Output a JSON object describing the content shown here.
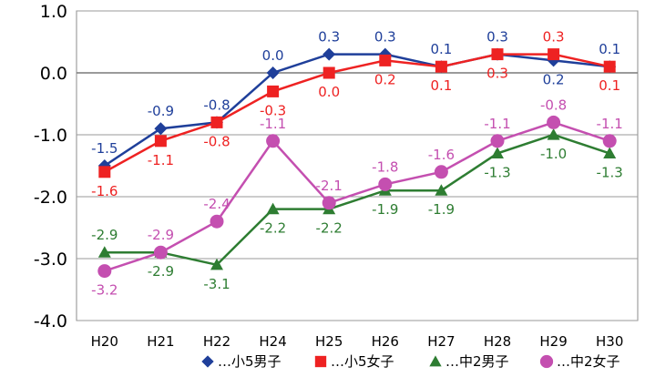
{
  "chart_data": {
    "type": "line",
    "categories": [
      "H20",
      "H21",
      "H22",
      "H24",
      "H25",
      "H26",
      "H27",
      "H28",
      "H29",
      "H30"
    ],
    "ylim": [
      -4.0,
      1.0
    ],
    "yticks": [
      1.0,
      0.0,
      -1.0,
      -2.0,
      -3.0,
      -4.0
    ],
    "ytick_labels": [
      "1.0",
      "0.0",
      "-1.0",
      "-2.0",
      "-3.0",
      "-4.0"
    ],
    "grid": true,
    "legend_position": "bottom",
    "series": [
      {
        "name": "…小5男子",
        "color": "#1f3f9a",
        "marker": "diamond",
        "values": [
          -1.5,
          -0.9,
          -0.8,
          0.0,
          0.3,
          0.3,
          0.1,
          0.3,
          0.2,
          0.1
        ],
        "labels": [
          "-1.5",
          "-0.9",
          "-0.8",
          "0.0",
          "0.3",
          "0.3",
          "0.1",
          "0.3",
          "0.2",
          "0.1"
        ],
        "label_side": [
          "above",
          "above",
          "above",
          "above",
          "above",
          "above",
          "above",
          "above",
          "below",
          "above"
        ]
      },
      {
        "name": "…小5女子",
        "color": "#ee2222",
        "marker": "square",
        "values": [
          -1.6,
          -1.1,
          -0.8,
          -0.3,
          0.0,
          0.2,
          0.1,
          0.3,
          0.3,
          0.1
        ],
        "labels": [
          "-1.6",
          "-1.1",
          "-0.8",
          "-0.3",
          "0.0",
          "0.2",
          "0.1",
          "0.3",
          "0.3",
          "0.1"
        ],
        "label_side": [
          "below",
          "below",
          "below",
          "below",
          "below",
          "below",
          "below",
          "below",
          "above",
          "below"
        ]
      },
      {
        "name": "…中2男子",
        "color": "#2e7d32",
        "marker": "triangle",
        "values": [
          -2.9,
          -2.9,
          -3.1,
          -2.2,
          -2.2,
          -1.9,
          -1.9,
          -1.3,
          -1.0,
          -1.3
        ],
        "labels": [
          "-2.9",
          "-2.9",
          "-3.1",
          "-2.2",
          "-2.2",
          "-1.9",
          "-1.9",
          "-1.3",
          "-1.0",
          "-1.3"
        ],
        "label_side": [
          "above",
          "below",
          "below",
          "below",
          "below",
          "below",
          "below",
          "below",
          "below",
          "below"
        ]
      },
      {
        "name": "…中2女子",
        "color": "#c44fb0",
        "marker": "circle",
        "values": [
          -3.2,
          -2.9,
          -2.4,
          -1.1,
          -2.1,
          -1.8,
          -1.6,
          -1.1,
          -0.8,
          -1.1
        ],
        "labels": [
          "-3.2",
          "-2.9",
          "-2.4",
          "-1.1",
          "-2.1",
          "-1.8",
          "-1.6",
          "-1.1",
          "-0.8",
          "-1.1"
        ],
        "label_side": [
          "below",
          "above",
          "above",
          "above",
          "above",
          "above",
          "above",
          "above",
          "above",
          "above"
        ]
      }
    ]
  }
}
